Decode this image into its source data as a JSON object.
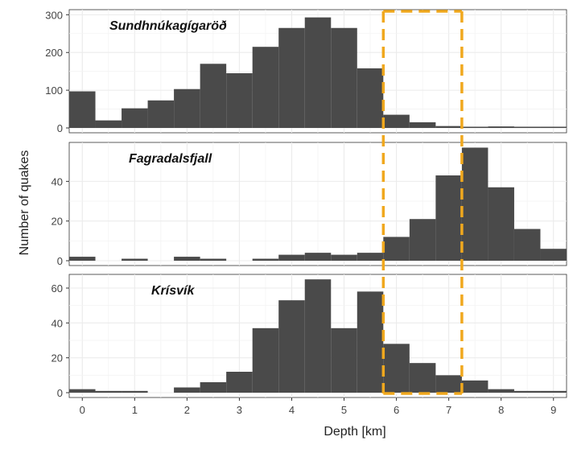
{
  "chart_data": {
    "type": "bar",
    "xlabel": "Depth [km]",
    "ylabel": "Number of quakes",
    "xlim": [
      -0.25,
      9.25
    ],
    "x_ticks": [
      "0",
      "1",
      "2",
      "3",
      "4",
      "5",
      "6",
      "7",
      "8",
      "9"
    ],
    "bin_width_km": 0.5,
    "bin_starts": [
      -0.25,
      0.25,
      0.75,
      1.25,
      1.75,
      2.25,
      2.75,
      3.25,
      3.75,
      4.25,
      4.75,
      5.25,
      5.75,
      6.25,
      6.75,
      7.25,
      7.75,
      8.25,
      8.75
    ],
    "grid": true,
    "bar_color": "#4a4a4a",
    "panel_background": "#ffffff",
    "grid_color": "#ebebeb",
    "highlight": {
      "x_range": [
        5.75,
        7.25
      ],
      "color": "#f0a81e",
      "style": "dashed"
    },
    "panels": [
      {
        "name": "Sundhnúkagígaröð",
        "ylim": [
          0,
          305
        ],
        "y_ticks": [
          0,
          100,
          200,
          300
        ],
        "values": [
          97,
          20,
          52,
          73,
          103,
          170,
          145,
          215,
          265,
          293,
          265,
          158,
          35,
          15,
          5,
          3,
          4,
          1,
          2
        ]
      },
      {
        "name": "Fagradalsfjall",
        "ylim": [
          0,
          58
        ],
        "y_ticks": [
          0,
          20,
          40
        ],
        "values": [
          2,
          0,
          1,
          0,
          2,
          1,
          0,
          1,
          3,
          4,
          3,
          4,
          12,
          21,
          43,
          57,
          37,
          16,
          6
        ]
      },
      {
        "name": "Krísvík",
        "ylim": [
          0,
          66
        ],
        "y_ticks": [
          0,
          20,
          40,
          60
        ],
        "values": [
          2,
          1,
          1,
          0,
          3,
          6,
          12,
          37,
          53,
          65,
          37,
          58,
          28,
          17,
          10,
          7,
          2,
          1,
          1
        ]
      }
    ]
  }
}
